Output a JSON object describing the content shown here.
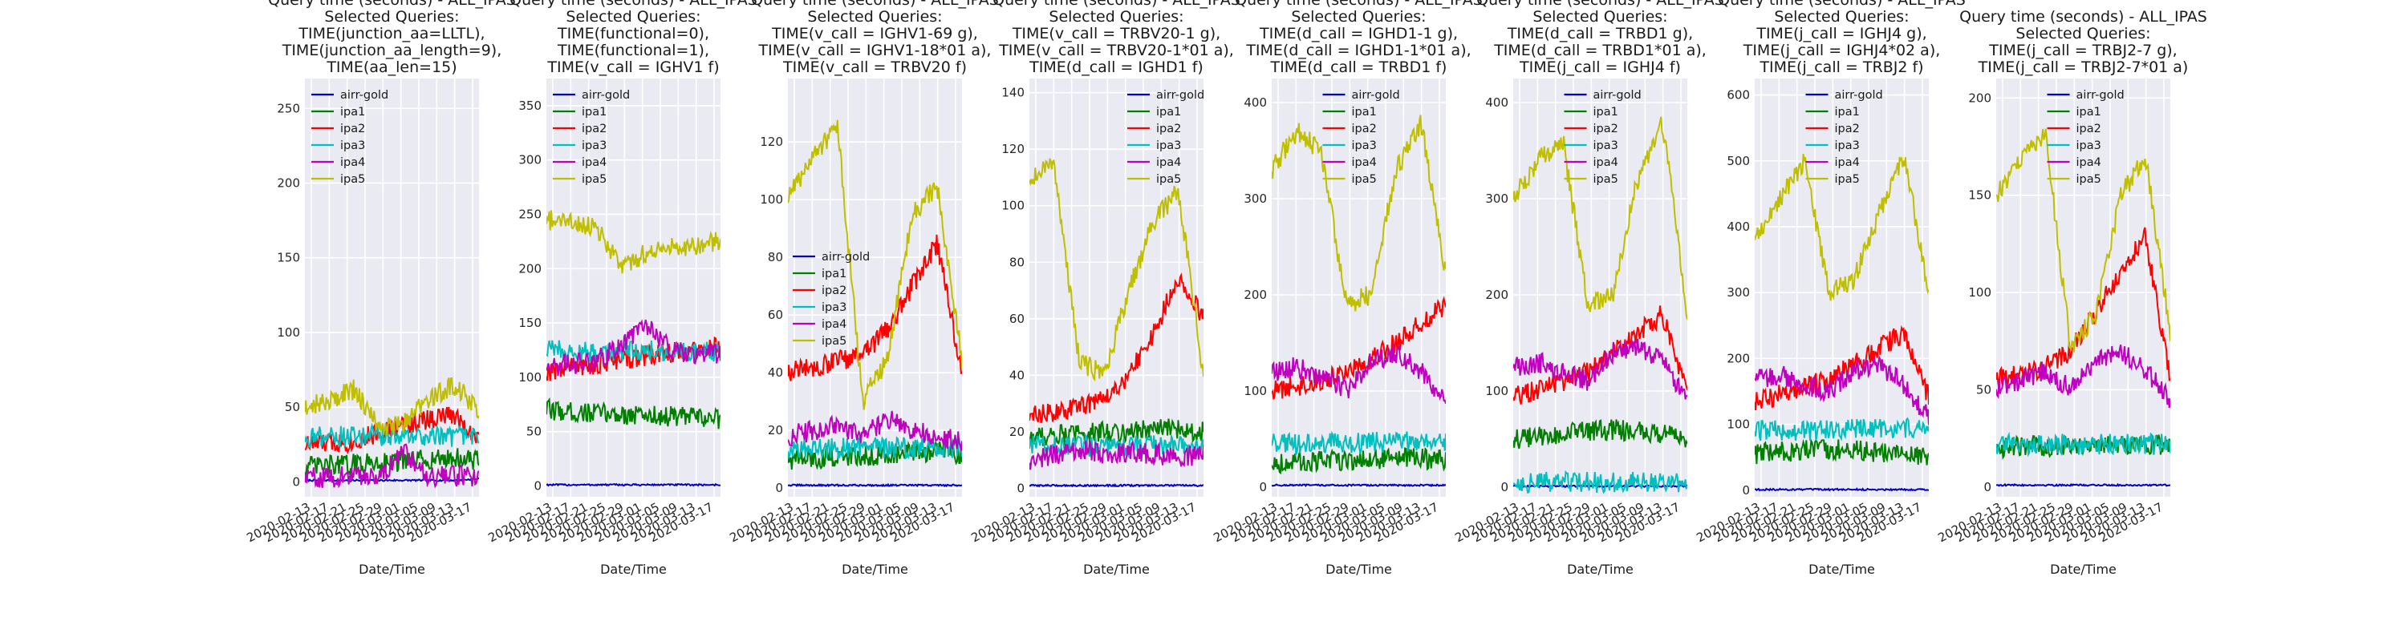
{
  "chart_data": [
    {
      "type": "line",
      "title": [
        "Query time (seconds) - ALL_IPAS",
        "Selected Queries:",
        "TIME(junction_aa=LLTL),",
        "TIME(junction_aa_length=9),",
        "TIME(aa_len=15)"
      ],
      "xlabel": "Date/Time",
      "ylabel": "",
      "ylim": [
        -10,
        270
      ],
      "yticks": [
        0,
        50,
        100,
        150,
        200,
        250
      ],
      "x_tick_labels": [
        "2020-02-13",
        "2020-02-17",
        "2020-02-21",
        "2020-02-25",
        "2020-02-29",
        "2020-03-01",
        "2020-03-05",
        "2020-03-09",
        "2020-03-13",
        "2020-03-17"
      ],
      "legend_loc": "upper left",
      "series": [
        {
          "name": "airr-gold",
          "color": "#0000cc",
          "values": [
            1,
            1,
            1,
            1,
            1,
            1,
            1,
            2
          ]
        },
        {
          "name": "ipa1",
          "color": "#007f00",
          "values": [
            10,
            11,
            12,
            13,
            14,
            15,
            16,
            14
          ]
        },
        {
          "name": "ipa2",
          "color": "#ff0000",
          "values": [
            25,
            26,
            27,
            33,
            38,
            42,
            45,
            28
          ]
        },
        {
          "name": "ipa3",
          "color": "#00bfbf",
          "values": [
            30,
            31,
            30,
            31,
            30,
            31,
            30,
            30
          ]
        },
        {
          "name": "ipa4",
          "color": "#bf00bf",
          "values": [
            3,
            3,
            4,
            4,
            20,
            4,
            4,
            4
          ]
        },
        {
          "name": "ipa5",
          "color": "#bfbf00",
          "values": [
            50,
            55,
            62,
            35,
            40,
            55,
            65,
            48
          ]
        }
      ]
    },
    {
      "type": "line",
      "title": [
        "Query time (seconds) - ALL_IPAS",
        "Selected Queries:",
        "TIME(functional=0),",
        "TIME(functional=1),",
        "TIME(v_call = IGHV1 f)"
      ],
      "xlabel": "Date/Time",
      "ylabel": "",
      "ylim": [
        -10,
        375
      ],
      "yticks": [
        0,
        50,
        100,
        150,
        200,
        250,
        300,
        350
      ],
      "x_tick_labels": [
        "2020-02-13",
        "2020-02-17",
        "2020-02-21",
        "2020-02-25",
        "2020-02-29",
        "2020-03-01",
        "2020-03-05",
        "2020-03-09",
        "2020-03-13",
        "2020-03-17"
      ],
      "legend_loc": "upper left",
      "series": [
        {
          "name": "airr-gold",
          "color": "#0000cc",
          "values": [
            1,
            1,
            1,
            1,
            1,
            1,
            1,
            1
          ]
        },
        {
          "name": "ipa1",
          "color": "#007f00",
          "values": [
            70,
            68,
            67,
            66,
            65,
            64,
            63,
            62
          ]
        },
        {
          "name": "ipa2",
          "color": "#ff0000",
          "values": [
            105,
            110,
            112,
            115,
            120,
            122,
            125,
            128
          ]
        },
        {
          "name": "ipa3",
          "color": "#00bfbf",
          "values": [
            125,
            124,
            123,
            124,
            125,
            124,
            123,
            124
          ]
        },
        {
          "name": "ipa4",
          "color": "#bf00bf",
          "values": [
            110,
            112,
            115,
            130,
            150,
            125,
            120,
            122
          ]
        },
        {
          "name": "ipa5",
          "color": "#bfbf00",
          "values": [
            245,
            242,
            240,
            200,
            215,
            220,
            222,
            225
          ]
        }
      ]
    },
    {
      "type": "line",
      "title": [
        "Query time (seconds) - ALL_IPAS",
        "Selected Queries:",
        "TIME(v_call = IGHV1-69 g),",
        "TIME(v_call = IGHV1-18*01 a),",
        "TIME(v_call = TRBV20 f)"
      ],
      "xlabel": "Date/Time",
      "ylabel": "",
      "ylim": [
        -3,
        142
      ],
      "yticks": [
        0,
        20,
        40,
        60,
        80,
        100,
        120
      ],
      "x_tick_labels": [
        "2020-02-13",
        "2020-02-17",
        "2020-02-21",
        "2020-02-25",
        "2020-02-29",
        "2020-03-01",
        "2020-03-05",
        "2020-03-09",
        "2020-03-13",
        "2020-03-17"
      ],
      "legend_loc": "center left",
      "series": [
        {
          "name": "airr-gold",
          "color": "#0000cc",
          "values": [
            1,
            1,
            1,
            1,
            1,
            1,
            1,
            1
          ]
        },
        {
          "name": "ipa1",
          "color": "#007f00",
          "values": [
            10,
            10,
            11,
            11,
            12,
            12,
            13,
            12
          ]
        },
        {
          "name": "ipa2",
          "color": "#ff0000",
          "values": [
            40,
            42,
            44,
            46,
            55,
            70,
            85,
            40
          ]
        },
        {
          "name": "ipa3",
          "color": "#00bfbf",
          "values": [
            14,
            14,
            14,
            14,
            14,
            14,
            14,
            14
          ]
        },
        {
          "name": "ipa4",
          "color": "#bf00bf",
          "values": [
            18,
            20,
            22,
            18,
            24,
            20,
            18,
            16
          ]
        },
        {
          "name": "ipa5",
          "color": "#bfbf00",
          "values": [
            100,
            115,
            125,
            30,
            45,
            95,
            105,
            45
          ]
        }
      ]
    },
    {
      "type": "line",
      "title": [
        "Query time (seconds) - ALL_IPAS",
        "Selected Queries:",
        "TIME(v_call = TRBV20-1 g),",
        "TIME(v_call = TRBV20-1*01  a),",
        "TIME(d_call = IGHD1 f)"
      ],
      "xlabel": "Date/Time",
      "ylabel": "",
      "ylim": [
        -3,
        145
      ],
      "yticks": [
        0,
        20,
        40,
        60,
        80,
        100,
        120,
        140
      ],
      "x_tick_labels": [
        "2020-02-13",
        "2020-02-17",
        "2020-02-21",
        "2020-02-25",
        "2020-02-29",
        "2020-03-01",
        "2020-03-05",
        "2020-03-09",
        "2020-03-13",
        "2020-03-17"
      ],
      "legend_loc": "upper right",
      "series": [
        {
          "name": "airr-gold",
          "color": "#0000cc",
          "values": [
            1,
            1,
            1,
            1,
            1,
            1,
            1,
            1
          ]
        },
        {
          "name": "ipa1",
          "color": "#007f00",
          "values": [
            18,
            19,
            19,
            20,
            20,
            21,
            21,
            20
          ]
        },
        {
          "name": "ipa2",
          "color": "#ff0000",
          "values": [
            25,
            27,
            29,
            32,
            40,
            55,
            75,
            60
          ]
        },
        {
          "name": "ipa3",
          "color": "#00bfbf",
          "values": [
            15,
            15,
            15,
            15,
            15,
            15,
            15,
            15
          ]
        },
        {
          "name": "ipa4",
          "color": "#bf00bf",
          "values": [
            10,
            12,
            14,
            12,
            13,
            12,
            11,
            12
          ]
        },
        {
          "name": "ipa5",
          "color": "#bfbf00",
          "values": [
            110,
            115,
            45,
            40,
            70,
            95,
            105,
            40
          ]
        }
      ]
    },
    {
      "type": "line",
      "title": [
        "Query time (seconds) - ALL_IPAS",
        "Selected Queries:",
        "TIME(d_call = IGHD1-1 g),",
        "TIME(d_call = IGHD1-1*01 a),",
        "TIME(d_call = TRBD1 f)"
      ],
      "xlabel": "Date/Time",
      "ylabel": "",
      "ylim": [
        -10,
        425
      ],
      "yticks": [
        0,
        100,
        200,
        300,
        400
      ],
      "x_tick_labels": [
        "2020-02-13",
        "2020-02-17",
        "2020-02-21",
        "2020-02-25",
        "2020-02-29",
        "2020-03-01",
        "2020-03-05",
        "2020-03-09",
        "2020-03-13",
        "2020-03-17"
      ],
      "legend_loc": "upper center",
      "series": [
        {
          "name": "airr-gold",
          "color": "#0000cc",
          "values": [
            2,
            2,
            2,
            2,
            2,
            2,
            2,
            2
          ]
        },
        {
          "name": "ipa1",
          "color": "#007f00",
          "values": [
            25,
            26,
            27,
            28,
            29,
            30,
            30,
            28
          ]
        },
        {
          "name": "ipa2",
          "color": "#ff0000",
          "values": [
            100,
            105,
            110,
            120,
            135,
            150,
            170,
            190
          ]
        },
        {
          "name": "ipa3",
          "color": "#00bfbf",
          "values": [
            45,
            45,
            46,
            46,
            47,
            47,
            48,
            48
          ]
        },
        {
          "name": "ipa4",
          "color": "#bf00bf",
          "values": [
            120,
            125,
            115,
            100,
            130,
            140,
            120,
            90
          ]
        },
        {
          "name": "ipa5",
          "color": "#bfbf00",
          "values": [
            330,
            370,
            350,
            190,
            200,
            330,
            380,
            220
          ]
        }
      ]
    },
    {
      "type": "line",
      "title": [
        "Query time (seconds) - ALL_IPAS",
        "Selected Queries:",
        "TIME(d_call = TRBD1 g),",
        "TIME(d_call = TRBD1*01 a),",
        "TIME(j_call = IGHJ4 f)"
      ],
      "xlabel": "Date/Time",
      "ylabel": "",
      "ylim": [
        -10,
        425
      ],
      "yticks": [
        0,
        100,
        200,
        300,
        400
      ],
      "x_tick_labels": [
        "2020-02-13",
        "2020-02-17",
        "2020-02-21",
        "2020-02-25",
        "2020-02-29",
        "2020-03-01",
        "2020-03-05",
        "2020-03-09",
        "2020-03-13",
        "2020-03-17"
      ],
      "legend_loc": "upper center",
      "series": [
        {
          "name": "airr-gold",
          "color": "#0000cc",
          "values": [
            1,
            1,
            1,
            1,
            1,
            1,
            1,
            1
          ]
        },
        {
          "name": "ipa1",
          "color": "#007f00",
          "values": [
            50,
            52,
            55,
            58,
            60,
            58,
            55,
            50
          ]
        },
        {
          "name": "ipa2",
          "color": "#ff0000",
          "values": [
            95,
            100,
            110,
            120,
            140,
            160,
            180,
            95
          ]
        },
        {
          "name": "ipa3",
          "color": "#00bfbf",
          "values": [
            5,
            5,
            5,
            5,
            5,
            5,
            5,
            5
          ]
        },
        {
          "name": "ipa4",
          "color": "#bf00bf",
          "values": [
            125,
            130,
            120,
            110,
            140,
            145,
            130,
            90
          ]
        },
        {
          "name": "ipa5",
          "color": "#bfbf00",
          "values": [
            300,
            340,
            360,
            190,
            200,
            320,
            380,
            180
          ]
        }
      ]
    },
    {
      "type": "line",
      "title": [
        "Query time (seconds) - ALL_IPAS",
        "Selected Queries:",
        "TIME(j_call = IGHJ4 g),",
        "TIME(j_call = IGHJ4*02 a),",
        "TIME(j_call = TRBJ2 f)"
      ],
      "xlabel": "Date/Time",
      "ylabel": "",
      "ylim": [
        -10,
        625
      ],
      "yticks": [
        0,
        100,
        200,
        300,
        400,
        500,
        600
      ],
      "x_tick_labels": [
        "2020-02-13",
        "2020-02-17",
        "2020-02-21",
        "2020-02-25",
        "2020-02-29",
        "2020-03-01",
        "2020-03-05",
        "2020-03-09",
        "2020-03-13",
        "2020-03-17"
      ],
      "legend_loc": "upper center",
      "series": [
        {
          "name": "airr-gold",
          "color": "#0000cc",
          "values": [
            1,
            1,
            1,
            1,
            1,
            1,
            1,
            1
          ]
        },
        {
          "name": "ipa1",
          "color": "#007f00",
          "values": [
            55,
            58,
            60,
            62,
            60,
            58,
            55,
            50
          ]
        },
        {
          "name": "ipa2",
          "color": "#ff0000",
          "values": [
            135,
            145,
            155,
            170,
            190,
            215,
            240,
            140
          ]
        },
        {
          "name": "ipa3",
          "color": "#00bfbf",
          "values": [
            90,
            90,
            91,
            91,
            92,
            92,
            93,
            92
          ]
        },
        {
          "name": "ipa4",
          "color": "#bf00bf",
          "values": [
            170,
            175,
            160,
            150,
            180,
            190,
            160,
            110
          ]
        },
        {
          "name": "ipa5",
          "color": "#bfbf00",
          "values": [
            380,
            440,
            500,
            300,
            320,
            420,
            510,
            300
          ]
        }
      ]
    },
    {
      "type": "line",
      "title": [
        "Query time (seconds) - ALL_IPAS",
        "Selected Queries:",
        "TIME(j_call = TRBJ2-7 g),",
        "TIME(j_call = TRBJ2-7*01 a)"
      ],
      "xlabel": "Date/Time",
      "ylabel": "",
      "ylim": [
        -5,
        210
      ],
      "yticks": [
        0,
        50,
        100,
        150,
        200
      ],
      "x_tick_labels": [
        "2020-02-13",
        "2020-02-17",
        "2020-02-21",
        "2020-02-25",
        "2020-02-29",
        "2020-03-01",
        "2020-03-05",
        "2020-03-09",
        "2020-03-13",
        "2020-03-17"
      ],
      "legend_loc": "upper center",
      "series": [
        {
          "name": "airr-gold",
          "color": "#0000cc",
          "values": [
            1,
            1,
            1,
            1,
            1,
            1,
            1,
            1
          ]
        },
        {
          "name": "ipa1",
          "color": "#007f00",
          "values": [
            20,
            21,
            21,
            22,
            22,
            22,
            22,
            22
          ]
        },
        {
          "name": "ipa2",
          "color": "#ff0000",
          "values": [
            55,
            58,
            62,
            70,
            90,
            110,
            130,
            55
          ]
        },
        {
          "name": "ipa3",
          "color": "#00bfbf",
          "values": [
            22,
            22,
            22,
            22,
            22,
            22,
            22,
            22
          ]
        },
        {
          "name": "ipa4",
          "color": "#bf00bf",
          "values": [
            50,
            55,
            60,
            50,
            65,
            70,
            60,
            45
          ]
        },
        {
          "name": "ipa5",
          "color": "#bfbf00",
          "values": [
            150,
            170,
            180,
            70,
            90,
            150,
            170,
            80
          ]
        }
      ]
    }
  ]
}
